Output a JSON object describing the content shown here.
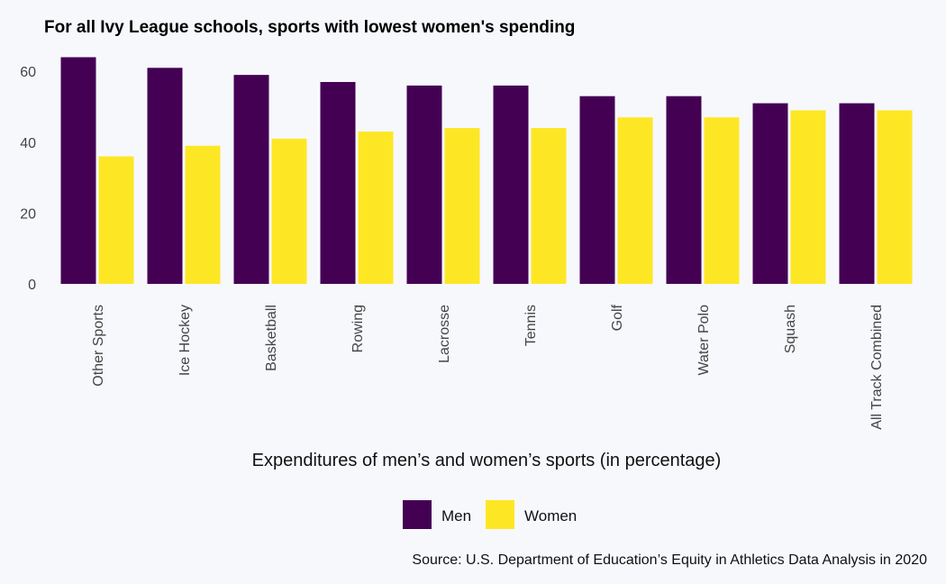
{
  "chart_data": {
    "type": "bar",
    "title": "For all Ivy League schools, sports with lowest women's spending",
    "xlabel": "Expenditures of men’s and women’s sports (in percentage)",
    "ylabel": "",
    "ylim": [
      0,
      70
    ],
    "yticks": [
      0,
      20,
      40,
      60
    ],
    "grid": false,
    "legend_position": "bottom",
    "categories": [
      "Other Sports",
      "Ice Hockey",
      "Basketball",
      "Rowing",
      "Lacrosse",
      "Tennis",
      "Golf",
      "Water Polo",
      "Squash",
      "All Track Combined"
    ],
    "series": [
      {
        "name": "Men",
        "color": "#440154",
        "values": [
          64,
          61,
          59,
          57,
          56,
          56,
          53,
          53,
          51,
          51
        ]
      },
      {
        "name": "Women",
        "color": "#fde725",
        "values": [
          36,
          39,
          41,
          43,
          44,
          44,
          47,
          47,
          49,
          49
        ]
      }
    ],
    "caption": "Source: U.S. Department of Education’s Equity in Athletics Data Analysis in 2020"
  }
}
